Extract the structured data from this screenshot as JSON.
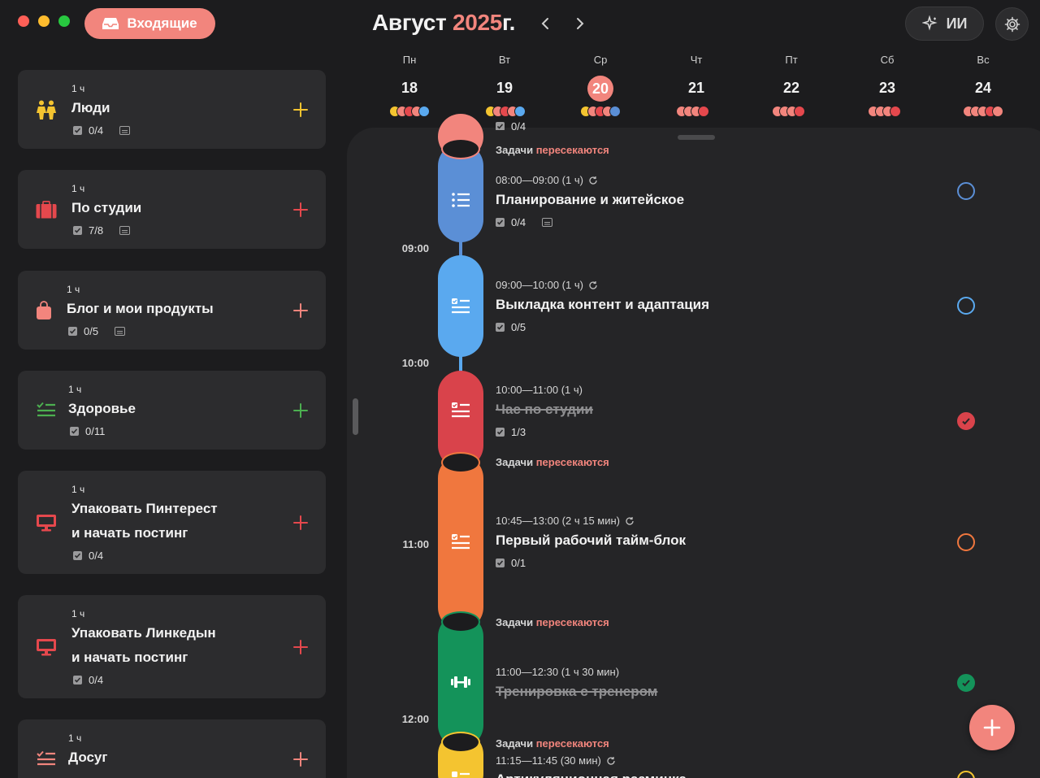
{
  "header": {
    "inbox_label": "Входящие",
    "month": "Август",
    "year": "2025",
    "year_suffix": "г.",
    "ai_label": "ИИ"
  },
  "colors": {
    "accent": "#f2857d",
    "background": "#1c1c1e",
    "card": "#2c2c2e"
  },
  "sidebar": {
    "items": [
      {
        "duration": "1 ч",
        "title": "Люди",
        "progress": "0/4",
        "has_note": true,
        "icon": "people-icon",
        "color": "#f4c430"
      },
      {
        "duration": "1 ч",
        "title": "По студии",
        "progress": "7/8",
        "has_note": true,
        "icon": "briefcase-icon",
        "color": "#e5484d"
      },
      {
        "duration": "1 ч",
        "title": "Блог и мои продукты",
        "progress": "0/5",
        "has_note": true,
        "icon": "shopping-bag-icon",
        "color": "#f2857d"
      },
      {
        "duration": "1 ч",
        "title": "Здоровье",
        "progress": "0/11",
        "has_note": false,
        "icon": "checklist-icon",
        "color": "#4caf50"
      },
      {
        "duration": "1 ч",
        "title_line1": "Упаковать Пинтерест",
        "title_line2": "и начать постинг",
        "progress": "0/4",
        "has_note": false,
        "icon": "monitor-icon",
        "color": "#e5484d"
      },
      {
        "duration": "1 ч",
        "title_line1": "Упаковать Линкедын",
        "title_line2": "и начать постинг",
        "progress": "0/4",
        "has_note": false,
        "icon": "monitor-icon",
        "color": "#e5484d"
      },
      {
        "duration": "1 ч",
        "title": "Досуг",
        "progress": "",
        "has_note": false,
        "icon": "checklist-icon",
        "color": "#f2857d"
      }
    ]
  },
  "week": {
    "days": [
      {
        "name": "Пн",
        "date": "18",
        "today": false
      },
      {
        "name": "Вт",
        "date": "19",
        "today": false
      },
      {
        "name": "Ср",
        "date": "20",
        "today": true
      },
      {
        "name": "Чт",
        "date": "21",
        "today": false
      },
      {
        "name": "Пт",
        "date": "22",
        "today": false
      },
      {
        "name": "Сб",
        "date": "23",
        "today": false
      },
      {
        "name": "Вс",
        "date": "24",
        "today": false
      }
    ]
  },
  "timeline": {
    "hours": [
      "09:00",
      "10:00",
      "11:00",
      "12:00"
    ],
    "overlap_prefix": "Задачи",
    "overlap_word": "пересекаются",
    "partial_progress": "0/4",
    "events": [
      {
        "time": "08:00—09:00 (1 ч)",
        "title": "Планирование и житейское",
        "progress": "0/4",
        "has_note": true,
        "done": false,
        "color": "#5b8fd6",
        "icon": "list-icon"
      },
      {
        "time": "09:00—10:00 (1 ч)",
        "title": "Выкладка контент и адаптация",
        "progress": "0/5",
        "has_note": false,
        "done": false,
        "color": "#5aa9ef",
        "icon": "checklist-icon"
      },
      {
        "time": "10:00—11:00 (1 ч)",
        "title": "Час по студии",
        "progress": "1/3",
        "has_note": false,
        "done": true,
        "color": "#d9434b",
        "icon": "checklist-icon"
      },
      {
        "time": "10:45—13:00 (2 ч 15 мин)",
        "title": "Первый рабочий тайм-блок",
        "progress": "0/1",
        "has_note": false,
        "done": false,
        "color": "#f0773e",
        "icon": "checklist-icon"
      },
      {
        "time": "11:00—12:30 (1 ч 30 мин)",
        "title": "Тренировка с тренером",
        "progress": "",
        "has_note": false,
        "done": true,
        "color": "#14935a",
        "icon": "dumbbell-icon"
      },
      {
        "time": "11:15—11:45 (30 мин)",
        "title": "Артикуляционная разминка",
        "progress": "",
        "has_note": false,
        "done": false,
        "color": "#f4c430",
        "icon": "checklist-icon"
      }
    ]
  }
}
